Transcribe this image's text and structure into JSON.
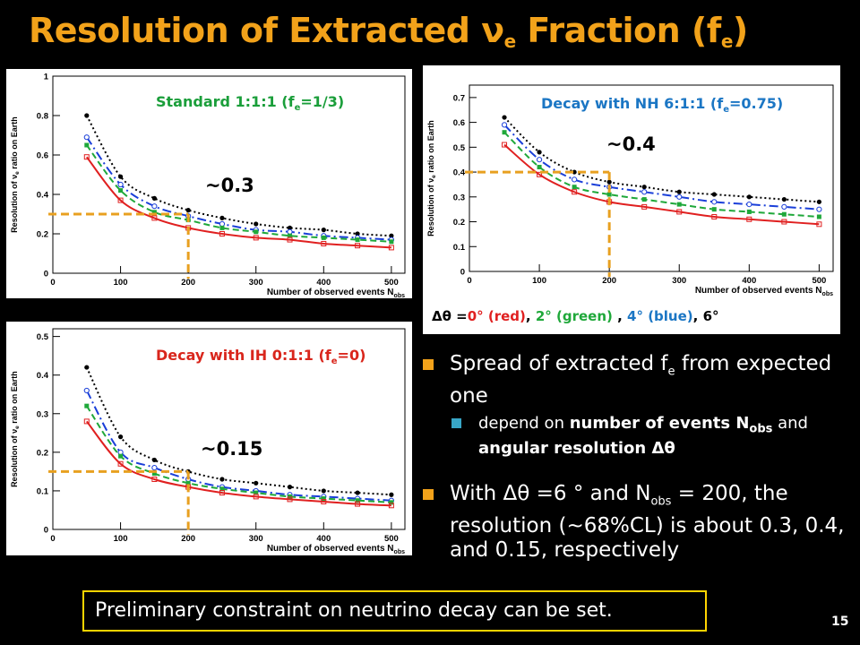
{
  "slide": {
    "title_main": "Resolution of Extracted ν",
    "title_sub1": "e",
    "title_mid": " Fraction (f",
    "title_sub2": "e",
    "title_end": ")",
    "page_number": "15"
  },
  "colors": {
    "accent": "#f2a21a",
    "bullet2": "#38a6c6",
    "footer_border": "#ffd400"
  },
  "panels": [
    {
      "label_pre": "Standard 1:1:1 (f",
      "label_sub": "e",
      "label_post": "=1/3)",
      "label_color": "#1a9e3a",
      "annotation": "~0.3",
      "y_ticks": [
        "0",
        "0.2",
        "0.4",
        "0.6",
        "0.8",
        "1"
      ],
      "x_ticks": [
        "0",
        "100",
        "200",
        "300",
        "400",
        "500"
      ],
      "xlabel": "Number of observed events N",
      "xlabel_sub": "obs",
      "ylabel": "Resolution of ν",
      "ylabel_sub": "e",
      "ylabel_post": " ratio on Earth"
    },
    {
      "label_pre": "Decay with NH 6:1:1 (f",
      "label_sub": "e",
      "label_post": "=0.75)",
      "label_color": "#1b76c4",
      "annotation": "~0.4",
      "y_ticks": [
        "0",
        "0.1",
        "0.2",
        "0.3",
        "0.4",
        "0.5",
        "0.6",
        "0.7"
      ],
      "x_ticks": [
        "0",
        "100",
        "200",
        "300",
        "400",
        "500"
      ],
      "xlabel": "Number of observed events N",
      "xlabel_sub": "obs",
      "ylabel": "Resolution of ν",
      "ylabel_sub": "e",
      "ylabel_post": " ratio on Earth"
    },
    {
      "label_pre": "Decay with IH 0:1:1 (f",
      "label_sub": "e",
      "label_post": "=0)",
      "label_color": "#d9261c",
      "annotation": "~0.15",
      "y_ticks": [
        "0",
        "0.1",
        "0.2",
        "0.3",
        "0.4",
        "0.5"
      ],
      "x_ticks": [
        "0",
        "100",
        "200",
        "300",
        "400",
        "500"
      ],
      "xlabel": "Number of observed events N",
      "xlabel_sub": "obs",
      "ylabel": "Resolution of ν",
      "ylabel_sub": "e",
      "ylabel_post": " ratio on Earth"
    }
  ],
  "legend": {
    "prefix": "Δθ =",
    "red": "0° (red)",
    "sep1": ",",
    "green": "2° (green)",
    "sep2": " ,",
    "blue": "4° (blue)",
    "sep3": ",",
    "black": "6°"
  },
  "bullets": {
    "b1_pre": "Spread of extracted f",
    "b1_sub": "e",
    "b1_post": " from expected one",
    "b1a_pre": "depend on ",
    "b1a_bold1": "number of events N",
    "b1a_sub": "obs",
    "b1a_mid": " and ",
    "b1a_bold2": "angular resolution Δθ",
    "b2_pre": "With Δθ =6 ° and N",
    "b2_sub": "obs",
    "b2_post": " = 200, the resolution (~68%CL)  is about 0.3, 0.4, and 0.15, respectively"
  },
  "footer": "Preliminary constraint on neutrino decay can be set.",
  "chart_data": [
    {
      "type": "line",
      "x": [
        50,
        100,
        150,
        200,
        250,
        300,
        350,
        400,
        450,
        500
      ],
      "xlim": [
        0,
        520
      ],
      "ylim": [
        0,
        1
      ],
      "series": [
        {
          "color": "#000000",
          "values": [
            0.8,
            0.49,
            0.38,
            0.32,
            0.28,
            0.25,
            0.23,
            0.22,
            0.2,
            0.19
          ]
        },
        {
          "color": "#1a3fd9",
          "values": [
            0.69,
            0.45,
            0.34,
            0.29,
            0.25,
            0.22,
            0.21,
            0.19,
            0.18,
            0.17
          ]
        },
        {
          "color": "#1fa83a",
          "values": [
            0.65,
            0.42,
            0.31,
            0.27,
            0.23,
            0.21,
            0.19,
            0.18,
            0.17,
            0.16
          ]
        },
        {
          "color": "#e02020",
          "values": [
            0.59,
            0.37,
            0.28,
            0.23,
            0.2,
            0.18,
            0.17,
            0.15,
            0.14,
            0.13
          ]
        }
      ],
      "annotation_value": 0.3
    },
    {
      "type": "line",
      "x": [
        50,
        100,
        150,
        200,
        250,
        300,
        350,
        400,
        450,
        500
      ],
      "xlim": [
        0,
        520
      ],
      "ylim": [
        0,
        0.75
      ],
      "series": [
        {
          "color": "#000000",
          "values": [
            0.62,
            0.48,
            0.4,
            0.36,
            0.34,
            0.32,
            0.31,
            0.3,
            0.29,
            0.28
          ]
        },
        {
          "color": "#1a3fd9",
          "values": [
            0.59,
            0.45,
            0.37,
            0.34,
            0.32,
            0.3,
            0.28,
            0.27,
            0.26,
            0.25
          ]
        },
        {
          "color": "#1fa83a",
          "values": [
            0.56,
            0.42,
            0.34,
            0.31,
            0.29,
            0.27,
            0.25,
            0.24,
            0.23,
            0.22
          ]
        },
        {
          "color": "#e02020",
          "values": [
            0.51,
            0.39,
            0.32,
            0.28,
            0.26,
            0.24,
            0.22,
            0.21,
            0.2,
            0.19
          ]
        }
      ],
      "annotation_value": 0.4
    },
    {
      "type": "line",
      "x": [
        50,
        100,
        150,
        200,
        250,
        300,
        350,
        400,
        450,
        500
      ],
      "xlim": [
        0,
        520
      ],
      "ylim": [
        0,
        0.52
      ],
      "series": [
        {
          "color": "#000000",
          "values": [
            0.42,
            0.24,
            0.18,
            0.15,
            0.13,
            0.12,
            0.11,
            0.1,
            0.095,
            0.09
          ]
        },
        {
          "color": "#1a3fd9",
          "values": [
            0.36,
            0.2,
            0.16,
            0.13,
            0.11,
            0.1,
            0.09,
            0.085,
            0.08,
            0.075
          ]
        },
        {
          "color": "#1fa83a",
          "values": [
            0.32,
            0.19,
            0.145,
            0.12,
            0.105,
            0.095,
            0.085,
            0.08,
            0.075,
            0.07
          ]
        },
        {
          "color": "#e02020",
          "values": [
            0.28,
            0.17,
            0.13,
            0.11,
            0.095,
            0.085,
            0.078,
            0.072,
            0.066,
            0.062
          ]
        }
      ],
      "annotation_value": 0.15
    }
  ]
}
